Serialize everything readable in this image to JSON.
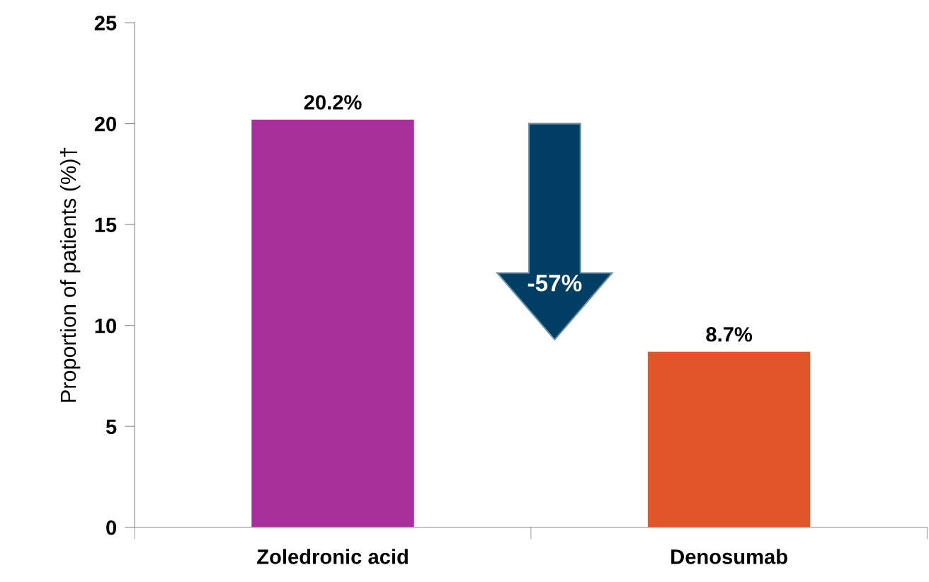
{
  "chart_data": {
    "type": "bar",
    "ylabel": "Proportion of patients (%)†",
    "categories": [
      "Zoledronic acid",
      "Denosumab"
    ],
    "values": [
      20.2,
      8.7
    ],
    "colors": [
      "#a62f9c",
      "#e05628"
    ],
    "value_labels": [
      "20.2%",
      "8.7%"
    ],
    "ylim": [
      0,
      25
    ],
    "yticks": [
      0,
      5,
      10,
      15,
      20,
      25
    ],
    "grid": false,
    "legend": false,
    "annotations": [
      "-57%"
    ]
  }
}
